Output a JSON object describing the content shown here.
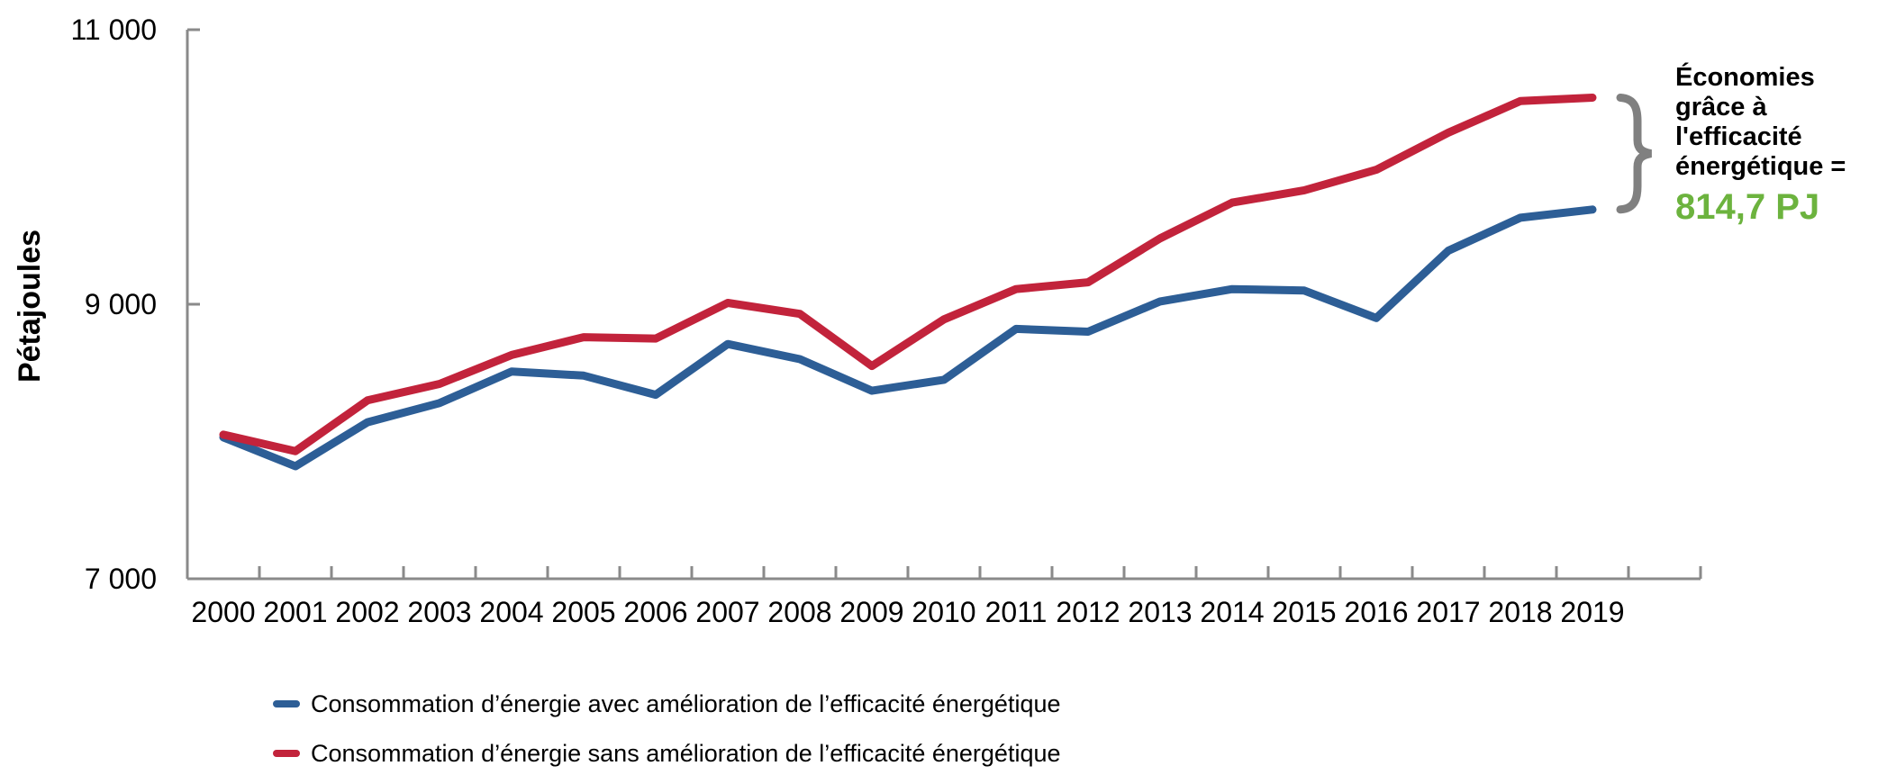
{
  "chart_data": {
    "type": "line",
    "title": "",
    "ylabel": "Pétajoules",
    "xlabel": "",
    "ylim": [
      7000,
      11000
    ],
    "grid": false,
    "legend_position": "bottom-left",
    "yticks": [
      {
        "value": 7000,
        "label": "7 000"
      },
      {
        "value": 9000,
        "label": "9 000"
      },
      {
        "value": 11000,
        "label": "11 000"
      }
    ],
    "categories": [
      "2000",
      "2001",
      "2002",
      "2003",
      "2004",
      "2005",
      "2006",
      "2007",
      "2008",
      "2009",
      "2010",
      "2011",
      "2012",
      "2013",
      "2014",
      "2015",
      "2016",
      "2017",
      "2018",
      "2019"
    ],
    "series": [
      {
        "name": "Consommation d’énergie avec amélioration de l’efficacité énergétique",
        "color": "#2D5E96",
        "values": [
          8030,
          7820,
          8140,
          8280,
          8510,
          8480,
          8340,
          8710,
          8600,
          8370,
          8450,
          8820,
          8800,
          9020,
          9110,
          9100,
          8900,
          9390,
          9630,
          9690
        ]
      },
      {
        "name": "Consommation d’énergie sans amélioration de l’efficacité énergétique",
        "color": "#C2233B",
        "values": [
          8050,
          7930,
          8300,
          8420,
          8630,
          8760,
          8750,
          9010,
          8930,
          8550,
          8890,
          9110,
          9160,
          9480,
          9740,
          9830,
          9980,
          10250,
          10480,
          10505
        ]
      }
    ],
    "annotation": {
      "lines": [
        "Économies",
        "grâce à",
        "l'efficacité",
        "énergétique ="
      ],
      "value": "814,7 PJ",
      "value_color": "#6CB33E",
      "brace_color": "#808080"
    },
    "axis_color": "#8A8A8A"
  }
}
